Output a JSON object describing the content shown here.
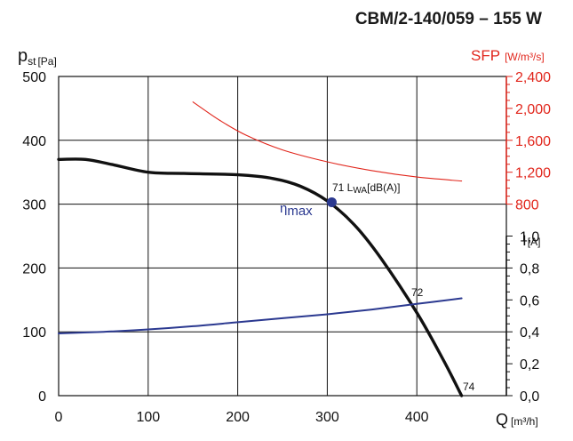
{
  "chart_data": {
    "type": "line",
    "title": "CBM/2-140/059 – 155 W",
    "x_axis": {
      "symbol": "Q",
      "unit": "[m³/h]",
      "range": [
        0,
        500
      ],
      "ticks": [
        0,
        100,
        200,
        300,
        400
      ],
      "tick_labels": [
        "0",
        "100",
        "200",
        "300",
        "400"
      ]
    },
    "y_axis_left": {
      "symbol": "p",
      "subscript": "st",
      "unit": "[Pa]",
      "range": [
        0,
        500
      ],
      "ticks": [
        0,
        100,
        200,
        300,
        400,
        500
      ],
      "tick_labels": [
        "0",
        "100",
        "200",
        "300",
        "400",
        "500"
      ]
    },
    "y_axis_sfp": {
      "label": "SFP",
      "unit": "[W/m³/s]",
      "color": "#e1261c",
      "range": [
        800,
        2400
      ],
      "ticks": [
        800,
        1200,
        1600,
        2000,
        2400
      ],
      "tick_labels": [
        "800",
        "1,200",
        "1,600",
        "2,000",
        "2,400"
      ]
    },
    "y_axis_current": {
      "label": "I",
      "unit": "[A]",
      "range": [
        0,
        1.0
      ],
      "ticks": [
        0,
        0.2,
        0.4,
        0.6,
        0.8,
        1.0
      ],
      "tick_labels": [
        "0,0",
        "0,2",
        "0,4",
        "0,6",
        "0,8",
        "1,0"
      ]
    },
    "grid": true,
    "series": [
      {
        "color": "#111111",
        "axis": "left",
        "x": [
          0,
          30,
          60,
          100,
          140,
          200,
          240,
          270,
          300,
          330,
          360,
          400,
          430,
          450
        ],
        "y": [
          370,
          370,
          362,
          350,
          348,
          346,
          340,
          328,
          305,
          268,
          215,
          130,
          55,
          0
        ]
      },
      {
        "color": "#e1261c",
        "axis": "sfp",
        "x": [
          150,
          180,
          210,
          250,
          300,
          350,
          400,
          450
        ],
        "y": [
          2080,
          1850,
          1660,
          1480,
          1330,
          1220,
          1140,
          1090
        ]
      },
      {
        "color": "#2b3990",
        "axis": "current",
        "x": [
          0,
          50,
          100,
          150,
          200,
          250,
          300,
          350,
          400,
          450
        ],
        "y": [
          0.39,
          0.4,
          0.415,
          0.435,
          0.46,
          0.485,
          0.51,
          0.54,
          0.575,
          0.61
        ]
      }
    ],
    "points": [
      {
        "name": "eta-max",
        "x": 305,
        "y": 303,
        "color": "#2b3990"
      }
    ],
    "annotations": {
      "eta_symbol": "η",
      "eta_text": "max",
      "sound_prefix": "71 L",
      "sound_sub": "WA",
      "sound_unit": "[dB(A)]",
      "label_72": "72",
      "label_74": "74"
    }
  }
}
